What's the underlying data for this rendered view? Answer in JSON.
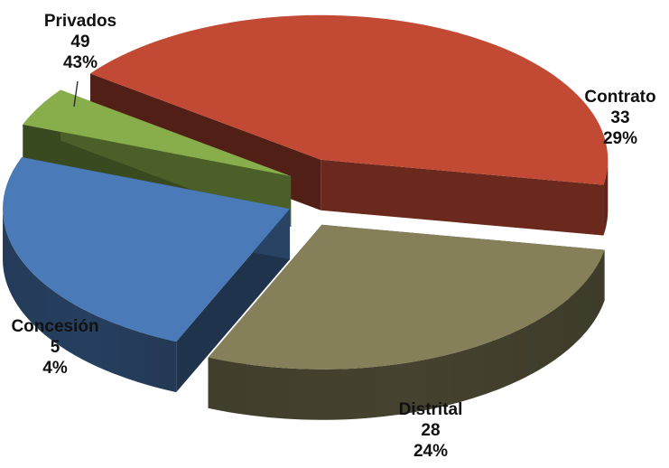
{
  "chart_data": {
    "type": "pie",
    "style": "3d-exploded",
    "slices": [
      {
        "name": "Contrato",
        "value": 33,
        "percent": "29%",
        "color": "#857F5A"
      },
      {
        "name": "Distrital",
        "value": 28,
        "percent": "24%",
        "color": "#4A7AB7"
      },
      {
        "name": "Concesión",
        "value": 5,
        "percent": "4%",
        "color": "#88AE4B"
      },
      {
        "name": "Privados",
        "value": 49,
        "percent": "43%",
        "color": "#C24A34"
      }
    ]
  }
}
